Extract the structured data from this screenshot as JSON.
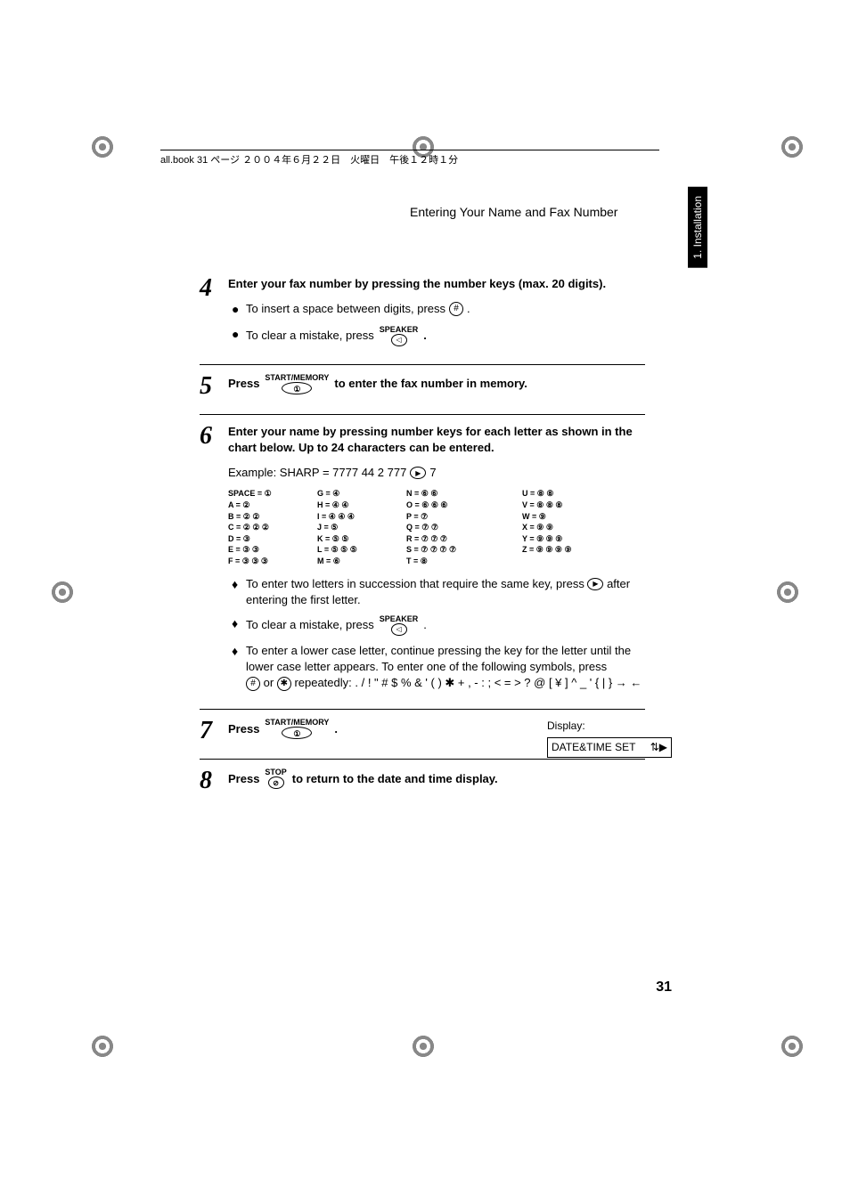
{
  "meta": {
    "bookline": "all.book  31 ページ  ２００４年６月２２日　火曜日　午後１２時１分",
    "header": "Entering Your Name and Fax Number",
    "sidetab": "1. Installation",
    "page_number": "31"
  },
  "buttons": {
    "hash": "#",
    "star": "✱",
    "speaker": "SPEAKER",
    "speaker_icon": "◁",
    "start_memory": "START/MEMORY",
    "start_icon": "①",
    "stop": "STOP",
    "stop_icon": "⊘",
    "arrow_right": "▶"
  },
  "steps": {
    "s4": {
      "num": "4",
      "title": "Enter your fax number by pressing the number keys (max. 20 digits).",
      "b1_pre": "To insert a space between digits, press",
      "b1_post": ".",
      "b2_pre": "To clear a mistake, press",
      "b2_post": "."
    },
    "s5": {
      "num": "5",
      "pre": "Press",
      "post": "to enter the fax number in memory."
    },
    "s6": {
      "num": "6",
      "title": "Enter your name by pressing number keys for each letter as shown in the chart below. Up to 24 characters can be entered.",
      "example_label": "Example: SHARP = 7777  44  2  777",
      "example_tail": "7",
      "tip1_pre": "To enter two letters in succession that require the same key, press",
      "tip1_post": "after entering the first letter.",
      "tip2_pre": "To clear a mistake, press",
      "tip2_post": ".",
      "tip3": "To enter a lower case letter, continue pressing the key for the letter until the lower case letter appears. To enter one of the following symbols, press",
      "tip3_mid": "or",
      "tip3_syms": "repeatedly: . / ! \" # $ % & ' ( ) ✱ + , - : ; < = > ? @ [ ¥ ] ^ _ ' { | } → ←"
    },
    "s7": {
      "num": "7",
      "pre": "Press",
      "post": ".",
      "display_label": "Display:",
      "display_text": "DATE&TIME SET"
    },
    "s8": {
      "num": "8",
      "pre": "Press",
      "post": "to return to the date and time display."
    }
  },
  "letter_chart": {
    "c1": [
      "SPACE = ①",
      "A = ②",
      "B = ② ②",
      "C = ② ② ②",
      "D = ③",
      "E = ③ ③",
      "F = ③ ③ ③"
    ],
    "c2": [
      "G = ④",
      "H = ④ ④",
      "I = ④ ④ ④",
      "J = ⑤",
      "K = ⑤ ⑤",
      "L = ⑤ ⑤ ⑤",
      "M = ⑥"
    ],
    "c3": [
      "N = ⑥ ⑥",
      "O = ⑥ ⑥ ⑥",
      "P = ⑦",
      "Q = ⑦ ⑦",
      "R = ⑦ ⑦ ⑦",
      "S = ⑦ ⑦ ⑦ ⑦",
      "T = ⑧"
    ],
    "c4": [
      "U = ⑧ ⑧",
      "V = ⑧ ⑧ ⑧",
      "W = ⑨",
      "X = ⑨ ⑨",
      "Y = ⑨ ⑨ ⑨",
      "Z = ⑨ ⑨ ⑨ ⑨",
      ""
    ]
  }
}
